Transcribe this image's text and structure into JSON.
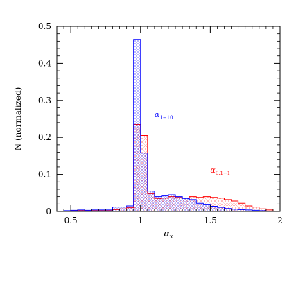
{
  "chart_data": {
    "type": "bar",
    "xlabel": "α",
    "xlabel_sub": "x",
    "ylabel": "N (normalized)",
    "xlim": [
      0.4,
      2.0
    ],
    "ylim": [
      0,
      0.5
    ],
    "xticks": [
      {
        "value": 0.5,
        "label": "0.5"
      },
      {
        "value": 1.0,
        "label": "1"
      },
      {
        "value": 1.5,
        "label": "1.5"
      },
      {
        "value": 2.0,
        "label": "2"
      }
    ],
    "yticks": [
      {
        "value": 0.0,
        "label": "0"
      },
      {
        "value": 0.1,
        "label": "0.1"
      },
      {
        "value": 0.2,
        "label": "0.2"
      },
      {
        "value": 0.3,
        "label": "0.3"
      },
      {
        "value": 0.4,
        "label": "0.4"
      },
      {
        "value": 0.5,
        "label": "0.5"
      }
    ],
    "grid": false,
    "bin_width": 0.05,
    "series": [
      {
        "name": "α",
        "name_sub": "1−10",
        "color": "#0000ff",
        "pattern": "dots",
        "bins_start": [
          0.45,
          0.5,
          0.55,
          0.6,
          0.65,
          0.7,
          0.75,
          0.8,
          0.85,
          0.9,
          0.95,
          1.0,
          1.05,
          1.1,
          1.15,
          1.2,
          1.25,
          1.3,
          1.35,
          1.4,
          1.45,
          1.5,
          1.55,
          1.6,
          1.65,
          1.7,
          1.75,
          1.8,
          1.85,
          1.9
        ],
        "values": [
          0.002,
          0.003,
          0.004,
          0.003,
          0.004,
          0.004,
          0.004,
          0.012,
          0.012,
          0.015,
          0.465,
          0.158,
          0.055,
          0.04,
          0.042,
          0.045,
          0.04,
          0.035,
          0.032,
          0.022,
          0.018,
          0.014,
          0.011,
          0.008,
          0.006,
          0.005,
          0.004,
          0.003,
          0.002,
          0.001
        ]
      },
      {
        "name": "α",
        "name_sub": "0.1−1",
        "color": "#ff0000",
        "pattern": "crosshatch",
        "bins_start": [
          0.45,
          0.5,
          0.55,
          0.6,
          0.65,
          0.7,
          0.75,
          0.8,
          0.85,
          0.9,
          0.95,
          1.0,
          1.05,
          1.1,
          1.15,
          1.2,
          1.25,
          1.3,
          1.35,
          1.4,
          1.45,
          1.5,
          1.55,
          1.6,
          1.65,
          1.7,
          1.75,
          1.8,
          1.85,
          1.9
        ],
        "values": [
          0.001,
          0.002,
          0.002,
          0.002,
          0.003,
          0.003,
          0.003,
          0.005,
          0.007,
          0.01,
          0.235,
          0.205,
          0.048,
          0.035,
          0.036,
          0.04,
          0.038,
          0.036,
          0.04,
          0.038,
          0.04,
          0.038,
          0.036,
          0.032,
          0.028,
          0.022,
          0.015,
          0.012,
          0.007,
          0.004
        ]
      }
    ]
  }
}
